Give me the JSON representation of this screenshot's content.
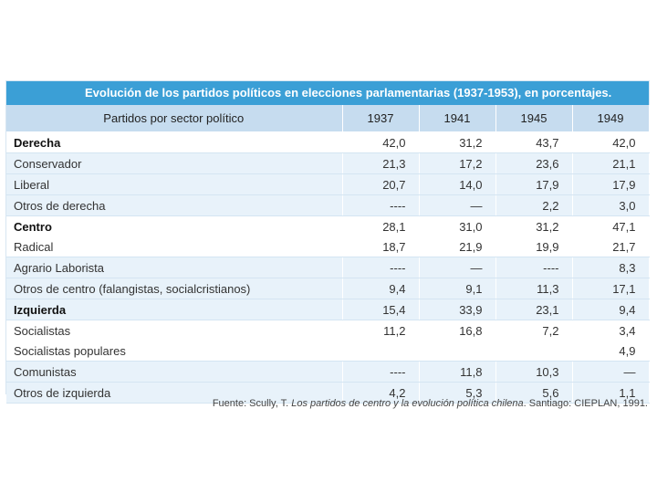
{
  "title": "Evolución de los partidos políticos en elecciones parlamentarias (1937-1953), en porcentajes.",
  "table": {
    "header_party": "Partidos por sector político",
    "years": [
      "1937",
      "1941",
      "1945",
      "1949"
    ],
    "rows": [
      {
        "label": "Derecha",
        "values": [
          "42,0",
          "31,2",
          "43,7",
          "42,0"
        ]
      },
      {
        "label": "Conservador",
        "values": [
          "21,3",
          "17,2",
          "23,6",
          "21,1"
        ]
      },
      {
        "label": "Liberal",
        "values": [
          "20,7",
          "14,0",
          "17,9",
          "17,9"
        ]
      },
      {
        "label": "Otros de derecha",
        "values": [
          "----",
          "—",
          "2,2",
          "3,0"
        ]
      },
      {
        "label": "Centro",
        "values": [
          "28,1",
          "31,0",
          "31,2",
          "47,1"
        ]
      },
      {
        "label": "Radical",
        "values": [
          "18,7",
          "21,9",
          "19,9",
          "21,7"
        ]
      },
      {
        "label": "Agrario Laborista",
        "values": [
          "----",
          "—",
          "----",
          "8,3"
        ]
      },
      {
        "label": "Otros de centro (falangistas, socialcristianos)",
        "values": [
          "9,4",
          "9,1",
          "11,3",
          "17,1"
        ]
      },
      {
        "label": "Izquierda",
        "values": [
          "15,4",
          "33,9",
          "23,1",
          "9,4"
        ]
      },
      {
        "label": "Socialistas",
        "values": [
          "11,2",
          "16,8",
          "7,2",
          "3,4"
        ]
      },
      {
        "label": "Socialistas populares",
        "values": [
          "",
          "",
          "",
          "4,9"
        ]
      },
      {
        "label": "Comunistas",
        "values": [
          "----",
          "11,8",
          "10,3",
          "—"
        ]
      },
      {
        "label": "Otros de izquierda",
        "values": [
          "4,2",
          "5,3",
          "5,6",
          "1,1"
        ]
      }
    ]
  },
  "source": {
    "prefix": "Fuente: Scully, T. ",
    "work": "Los partidos de centro y la evolución política chilena",
    "suffix": ". Santiago: CIEPLAN, 1991."
  }
}
